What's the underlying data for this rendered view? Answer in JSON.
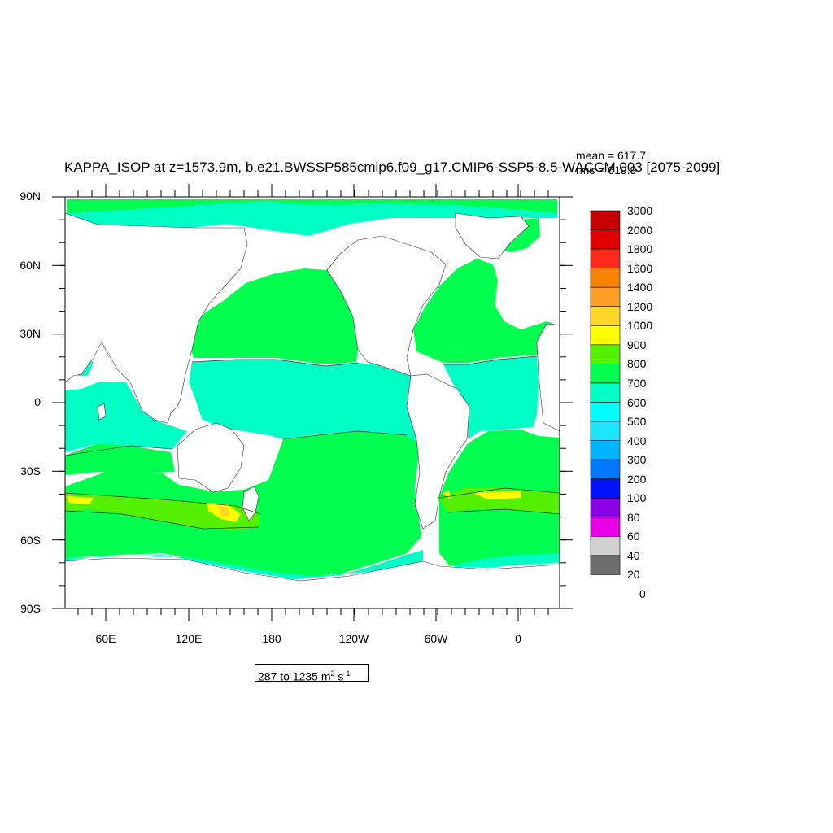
{
  "title": "KAPPA_ISOP at z=1573.9m, b.e21.BWSSP585cmip6.f09_g17.CMIP6-SSP5-8.5-WACCM.003 [2075-2099]",
  "stats": {
    "mean": "mean = 617.7",
    "rms": "rms = 619.9"
  },
  "axes": {
    "y_ticks": [
      "90N",
      "60N",
      "30N",
      "0",
      "30S",
      "60S",
      "90S"
    ],
    "x_ticks": [
      "60E",
      "120E",
      "180",
      "120W",
      "60W",
      "0"
    ]
  },
  "colorbar": {
    "labels": [
      "3000",
      "2000",
      "1800",
      "1600",
      "1400",
      "1200",
      "1000",
      "900",
      "800",
      "700",
      "600",
      "500",
      "400",
      "300",
      "200",
      "100",
      "80",
      "60",
      "40",
      "20",
      "0"
    ],
    "colors": [
      "#c40000",
      "#e00000",
      "#ff2a1a",
      "#f58300",
      "#ff9f2a",
      "#ffd52a",
      "#ffff00",
      "#55ef00",
      "#00ff4f",
      "#00ffc4",
      "#00ffff",
      "#1ce6ff",
      "#00b4ff",
      "#0078ff",
      "#0014ff",
      "#8c00e6",
      "#e600e6",
      "#d2d2d2",
      "#6e6e6e"
    ]
  },
  "range_label": {
    "text": "287 to 1235 m",
    "sup1": "2",
    "mid": " s",
    "sup2": "-1"
  },
  "map_colors": {
    "land": "#ffffff",
    "ocean_600_700": "#00ff4f",
    "ocean_500_600": "#00ffc4",
    "ocean_700_800": "#55ef00",
    "ocean_800_900": "#ffff00",
    "ocean_900_1000": "#ffd52a"
  }
}
